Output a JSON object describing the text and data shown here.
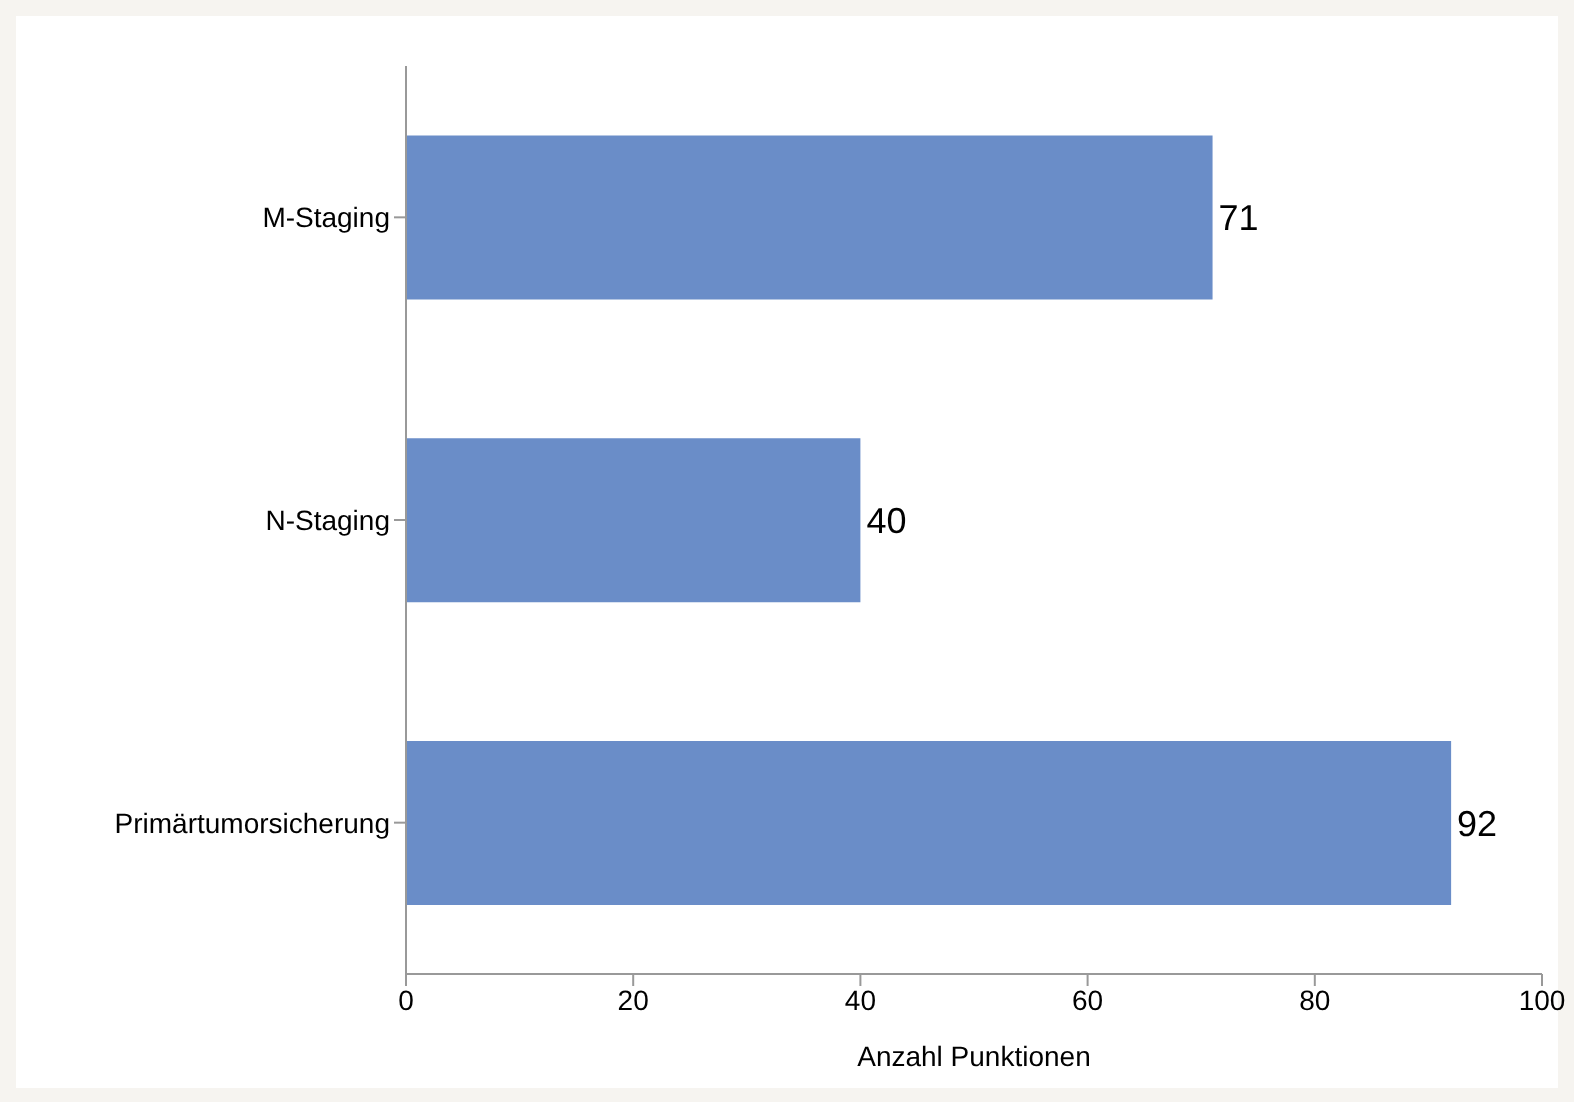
{
  "chart_data": {
    "type": "bar",
    "orientation": "horizontal",
    "categories": [
      "M-Staging",
      "N-Staging",
      "Primärtumorsicherung"
    ],
    "values": [
      71,
      40,
      92
    ],
    "color": "#6a8dc8",
    "xlim": [
      0,
      100
    ],
    "xticks": [
      0,
      20,
      40,
      60,
      80,
      100
    ],
    "xlabel": "Anzahl Punktionen",
    "data_labels": true,
    "grid": false,
    "legend": false
  }
}
